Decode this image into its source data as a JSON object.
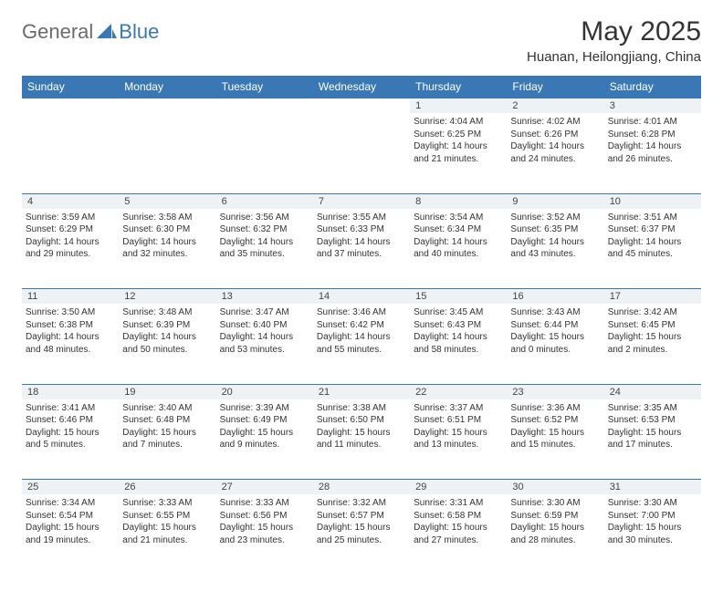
{
  "logo": {
    "text_general": "General",
    "text_blue": "Blue"
  },
  "title": "May 2025",
  "location": "Huanan, Heilongjiang, China",
  "colors": {
    "header_bg": "#3a78b5",
    "header_text": "#ffffff",
    "daynum_bg": "#eef2f5",
    "border": "#3a78b5",
    "text": "#333333",
    "logo_gray": "#6b6b6b",
    "logo_blue": "#3a78b5"
  },
  "weekdays": [
    "Sunday",
    "Monday",
    "Tuesday",
    "Wednesday",
    "Thursday",
    "Friday",
    "Saturday"
  ],
  "weeks": [
    [
      null,
      null,
      null,
      null,
      {
        "n": "1",
        "sr": "4:04 AM",
        "ss": "6:25 PM",
        "dl": "14 hours and 21 minutes."
      },
      {
        "n": "2",
        "sr": "4:02 AM",
        "ss": "6:26 PM",
        "dl": "14 hours and 24 minutes."
      },
      {
        "n": "3",
        "sr": "4:01 AM",
        "ss": "6:28 PM",
        "dl": "14 hours and 26 minutes."
      }
    ],
    [
      {
        "n": "4",
        "sr": "3:59 AM",
        "ss": "6:29 PM",
        "dl": "14 hours and 29 minutes."
      },
      {
        "n": "5",
        "sr": "3:58 AM",
        "ss": "6:30 PM",
        "dl": "14 hours and 32 minutes."
      },
      {
        "n": "6",
        "sr": "3:56 AM",
        "ss": "6:32 PM",
        "dl": "14 hours and 35 minutes."
      },
      {
        "n": "7",
        "sr": "3:55 AM",
        "ss": "6:33 PM",
        "dl": "14 hours and 37 minutes."
      },
      {
        "n": "8",
        "sr": "3:54 AM",
        "ss": "6:34 PM",
        "dl": "14 hours and 40 minutes."
      },
      {
        "n": "9",
        "sr": "3:52 AM",
        "ss": "6:35 PM",
        "dl": "14 hours and 43 minutes."
      },
      {
        "n": "10",
        "sr": "3:51 AM",
        "ss": "6:37 PM",
        "dl": "14 hours and 45 minutes."
      }
    ],
    [
      {
        "n": "11",
        "sr": "3:50 AM",
        "ss": "6:38 PM",
        "dl": "14 hours and 48 minutes."
      },
      {
        "n": "12",
        "sr": "3:48 AM",
        "ss": "6:39 PM",
        "dl": "14 hours and 50 minutes."
      },
      {
        "n": "13",
        "sr": "3:47 AM",
        "ss": "6:40 PM",
        "dl": "14 hours and 53 minutes."
      },
      {
        "n": "14",
        "sr": "3:46 AM",
        "ss": "6:42 PM",
        "dl": "14 hours and 55 minutes."
      },
      {
        "n": "15",
        "sr": "3:45 AM",
        "ss": "6:43 PM",
        "dl": "14 hours and 58 minutes."
      },
      {
        "n": "16",
        "sr": "3:43 AM",
        "ss": "6:44 PM",
        "dl": "15 hours and 0 minutes."
      },
      {
        "n": "17",
        "sr": "3:42 AM",
        "ss": "6:45 PM",
        "dl": "15 hours and 2 minutes."
      }
    ],
    [
      {
        "n": "18",
        "sr": "3:41 AM",
        "ss": "6:46 PM",
        "dl": "15 hours and 5 minutes."
      },
      {
        "n": "19",
        "sr": "3:40 AM",
        "ss": "6:48 PM",
        "dl": "15 hours and 7 minutes."
      },
      {
        "n": "20",
        "sr": "3:39 AM",
        "ss": "6:49 PM",
        "dl": "15 hours and 9 minutes."
      },
      {
        "n": "21",
        "sr": "3:38 AM",
        "ss": "6:50 PM",
        "dl": "15 hours and 11 minutes."
      },
      {
        "n": "22",
        "sr": "3:37 AM",
        "ss": "6:51 PM",
        "dl": "15 hours and 13 minutes."
      },
      {
        "n": "23",
        "sr": "3:36 AM",
        "ss": "6:52 PM",
        "dl": "15 hours and 15 minutes."
      },
      {
        "n": "24",
        "sr": "3:35 AM",
        "ss": "6:53 PM",
        "dl": "15 hours and 17 minutes."
      }
    ],
    [
      {
        "n": "25",
        "sr": "3:34 AM",
        "ss": "6:54 PM",
        "dl": "15 hours and 19 minutes."
      },
      {
        "n": "26",
        "sr": "3:33 AM",
        "ss": "6:55 PM",
        "dl": "15 hours and 21 minutes."
      },
      {
        "n": "27",
        "sr": "3:33 AM",
        "ss": "6:56 PM",
        "dl": "15 hours and 23 minutes."
      },
      {
        "n": "28",
        "sr": "3:32 AM",
        "ss": "6:57 PM",
        "dl": "15 hours and 25 minutes."
      },
      {
        "n": "29",
        "sr": "3:31 AM",
        "ss": "6:58 PM",
        "dl": "15 hours and 27 minutes."
      },
      {
        "n": "30",
        "sr": "3:30 AM",
        "ss": "6:59 PM",
        "dl": "15 hours and 28 minutes."
      },
      {
        "n": "31",
        "sr": "3:30 AM",
        "ss": "7:00 PM",
        "dl": "15 hours and 30 minutes."
      }
    ]
  ],
  "labels": {
    "sunrise": "Sunrise:",
    "sunset": "Sunset:",
    "daylight": "Daylight:"
  }
}
